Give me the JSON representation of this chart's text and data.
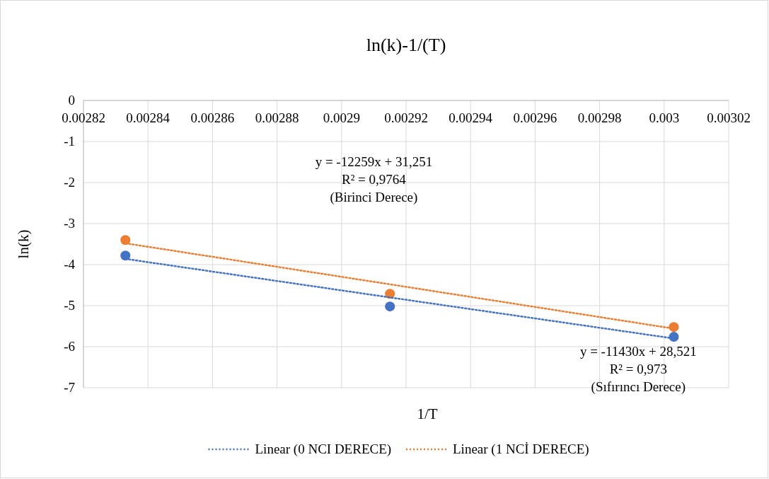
{
  "chart_data": {
    "type": "scatter",
    "title": "ln(k)-1/(T)",
    "xlabel": "1/T",
    "ylabel": "ln(k)",
    "x": [
      0.002833,
      0.002915,
      0.003003
    ],
    "series": [
      {
        "color": "#4472c4",
        "values": [
          -3.78,
          -5.02,
          -5.76
        ],
        "marker": "circle"
      },
      {
        "color": "#ed7d31",
        "values": [
          -3.4,
          -4.71,
          -5.52
        ],
        "marker": "circle"
      },
      {
        "type": "line",
        "name": "Linear (0 NCI DERECE)",
        "color": "#4472c4",
        "values": [
          -3.86,
          -4.8,
          -5.8
        ],
        "line_style": "dotted",
        "marker": "none"
      },
      {
        "type": "line",
        "name": "Linear (1 NCİ DERECE)",
        "color": "#ed7d31",
        "values": [
          -3.48,
          -4.48,
          -5.56
        ],
        "line_style": "dotted",
        "marker": "none"
      }
    ],
    "xlim": [
      0.00282,
      0.00302
    ],
    "xticks": [
      0.00282,
      0.00284,
      0.00286,
      0.00288,
      0.0029,
      0.00292,
      0.00294,
      0.00296,
      0.00298,
      0.003,
      0.00302
    ],
    "ylim": [
      -7,
      0
    ],
    "yticks": [
      0,
      -1,
      -2,
      -3,
      -4,
      -5,
      -6,
      -7
    ],
    "grid": true,
    "legend": "bottom",
    "annotations": [
      "y = -12259x + 31,251\nR² = 0,9764\n(Birinci Derece)",
      "y = -11430x + 28,521\nR² = 0,973\n(Sıfırıncı Derece)"
    ]
  }
}
